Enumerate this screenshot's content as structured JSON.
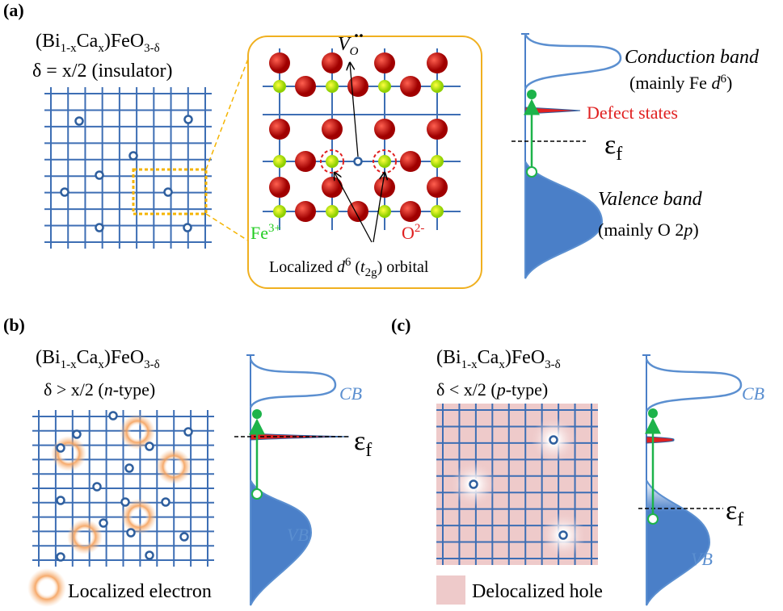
{
  "panel_a": {
    "label": "(a)",
    "formula": [
      "(Bi",
      "1-x",
      "Ca",
      "x",
      ")FeO",
      "3-δ"
    ],
    "condition": "δ = x/2 (insulator)",
    "inset": {
      "vacancy": [
        "V",
        "O"
      ],
      "fe_ion": [
        "Fe",
        "3+"
      ],
      "o_ion": [
        "O",
        "2-"
      ],
      "orbital": [
        "Localized ",
        "d",
        "6",
        " (",
        "t",
        "2g",
        ") orbital"
      ]
    },
    "bands": {
      "conduction": "Conduction band",
      "conduction_note": [
        "(mainly Fe ",
        "d",
        "6",
        ")"
      ],
      "defect": "Defect states",
      "fermi": [
        "ε",
        "f"
      ],
      "valence": "Valence band",
      "valence_note": [
        "(mainly O 2",
        "p",
        ")"
      ]
    }
  },
  "panel_b": {
    "label": "(b)",
    "formula": [
      "(Bi",
      "1-x",
      "Ca",
      "x",
      ")FeO",
      "3-δ"
    ],
    "condition": [
      "δ > x/2 (",
      "n",
      "-type)"
    ],
    "cb": "CB",
    "vb": "VB",
    "fermi": [
      "ε",
      "f"
    ],
    "legend": "Localized electron"
  },
  "panel_c": {
    "label": "(c)",
    "formula": [
      "(Bi",
      "1-x",
      "Ca",
      "x",
      ")FeO",
      "3-δ"
    ],
    "condition": [
      "δ < x/2 (",
      "p",
      "-type)"
    ],
    "cb": "CB",
    "vb": "VB",
    "fermi": [
      "ε",
      "f"
    ],
    "legend": "Delocalized hole"
  }
}
